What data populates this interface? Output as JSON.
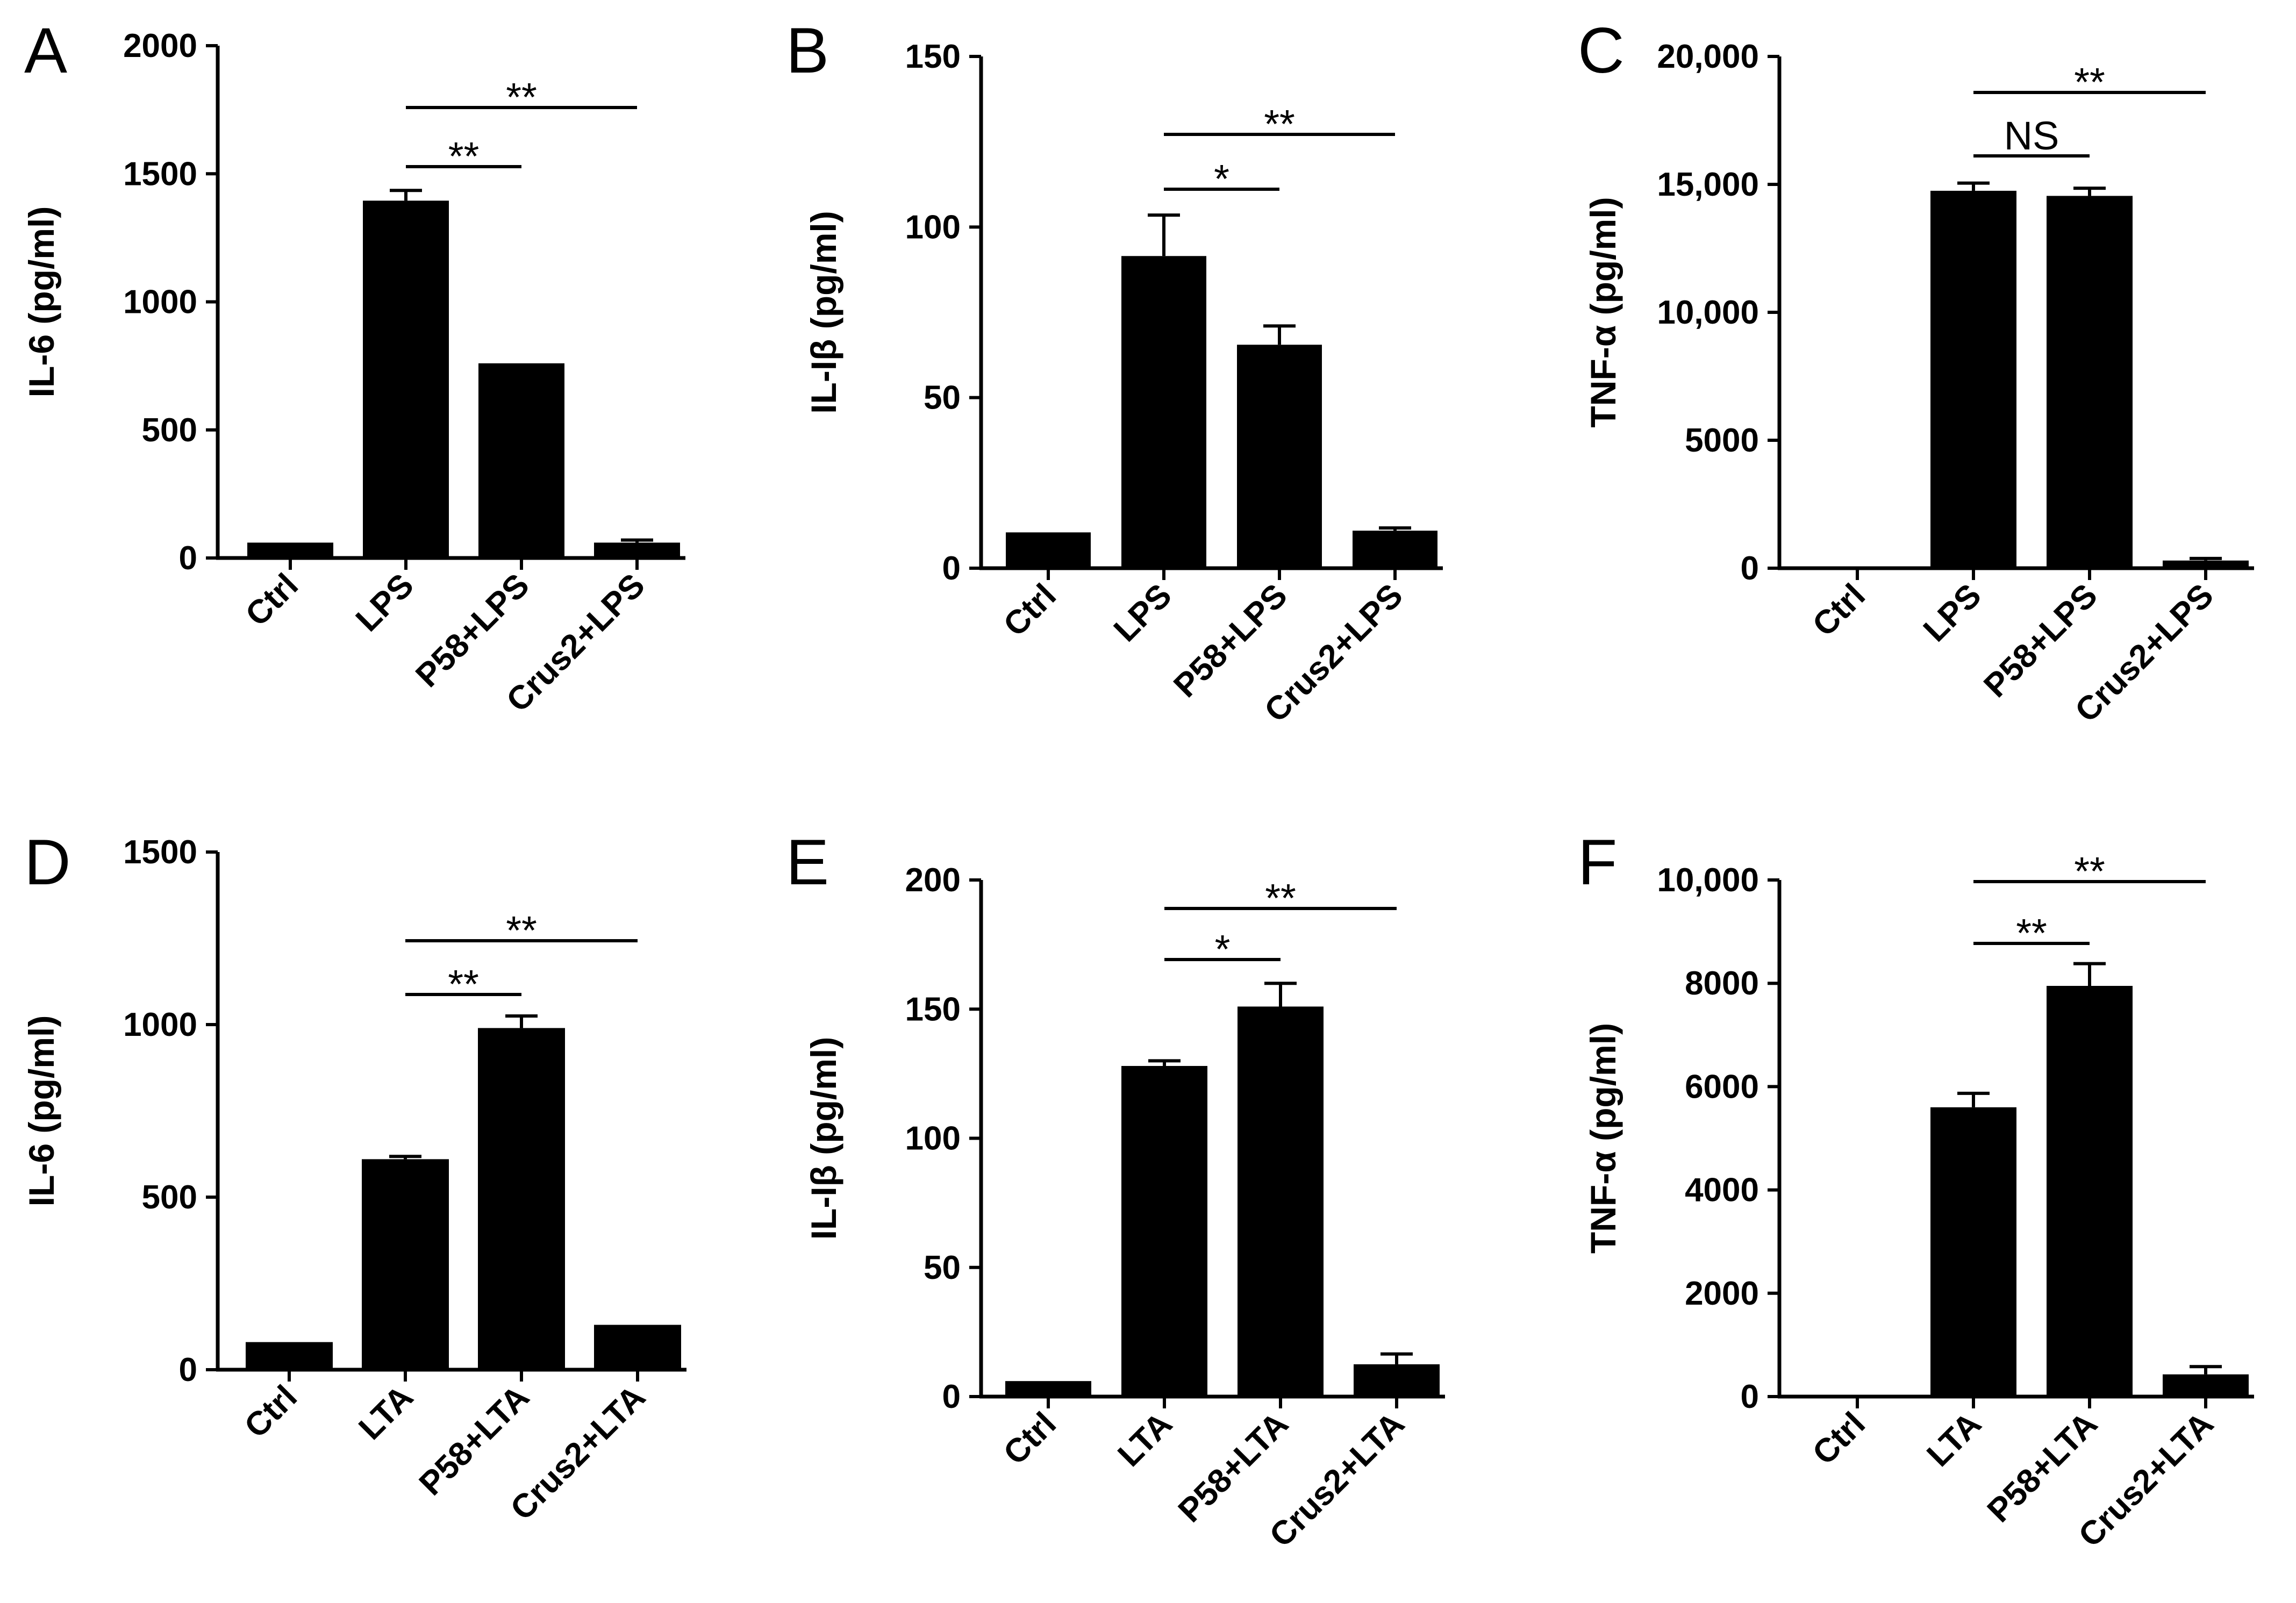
{
  "chart_data": [
    {
      "type": "bar",
      "panel": "A",
      "ylabel": "IL-6 (pg/ml)",
      "ylim": [
        0,
        2000
      ],
      "yticks": [
        0,
        500,
        1000,
        1500,
        2000
      ],
      "ytick_labels": [
        "0",
        "500",
        "1000",
        "1500",
        "2000"
      ],
      "categories": [
        "Ctrl",
        "LPS",
        "P58+LPS",
        "Crus2+LPS"
      ],
      "values": [
        60,
        1395,
        760,
        60
      ],
      "errors": [
        0,
        40,
        0,
        10
      ],
      "significance": [
        {
          "from": 1,
          "to": 2,
          "label": "**"
        },
        {
          "from": 1,
          "to": 3,
          "label": "**"
        }
      ]
    },
    {
      "type": "bar",
      "panel": "B",
      "ylabel": "IL-Iβ (pg/ml)",
      "ylim": [
        0,
        150
      ],
      "yticks": [
        0,
        50,
        100,
        150
      ],
      "ytick_labels": [
        "0",
        "50",
        "100",
        "150"
      ],
      "categories": [
        "Ctrl",
        "LPS",
        "P58+LPS",
        "Crus2+LPS"
      ],
      "values": [
        10.5,
        91.5,
        65.5,
        11
      ],
      "errors": [
        0,
        12,
        5.5,
        0.8
      ],
      "significance": [
        {
          "from": 1,
          "to": 2,
          "label": "*"
        },
        {
          "from": 1,
          "to": 3,
          "label": "**"
        }
      ]
    },
    {
      "type": "bar",
      "panel": "C",
      "ylabel": "TNF-α (pg/ml)",
      "ylim": [
        0,
        20000
      ],
      "yticks": [
        0,
        5000,
        10000,
        15000,
        20000
      ],
      "ytick_labels": [
        "0",
        "5000",
        "10,000",
        "15,000",
        "20,000"
      ],
      "categories": [
        "Ctrl",
        "LPS",
        "P58+LPS",
        "Crus2+LPS"
      ],
      "values": [
        50,
        14750,
        14550,
        300
      ],
      "errors": [
        0,
        300,
        300,
        80
      ],
      "significance": [
        {
          "from": 1,
          "to": 2,
          "label": "NS"
        },
        {
          "from": 1,
          "to": 3,
          "label": "**"
        }
      ]
    },
    {
      "type": "bar",
      "panel": "D",
      "ylabel": "IL-6 (pg/ml)",
      "ylim": [
        0,
        1500
      ],
      "yticks": [
        0,
        500,
        1000,
        1500
      ],
      "ytick_labels": [
        "0",
        "500",
        "1000",
        "1500"
      ],
      "categories": [
        "Ctrl",
        "LTA",
        "P58+LTA",
        "Crus2+LTA"
      ],
      "values": [
        80,
        610,
        990,
        130
      ],
      "errors": [
        0,
        8,
        35,
        0
      ],
      "significance": [
        {
          "from": 1,
          "to": 2,
          "label": "**"
        },
        {
          "from": 1,
          "to": 3,
          "label": "**"
        }
      ]
    },
    {
      "type": "bar",
      "panel": "E",
      "ylabel": "IL-Iβ (pg/ml)",
      "ylim": [
        0,
        200
      ],
      "yticks": [
        0,
        50,
        100,
        150,
        200
      ],
      "ytick_labels": [
        "0",
        "50",
        "100",
        "150",
        "200"
      ],
      "categories": [
        "Ctrl",
        "LTA",
        "P58+LTA",
        "Crus2+LTA"
      ],
      "values": [
        6,
        128,
        151,
        12.5
      ],
      "errors": [
        0,
        2,
        9,
        4
      ],
      "significance": [
        {
          "from": 1,
          "to": 2,
          "label": "*"
        },
        {
          "from": 1,
          "to": 3,
          "label": "**"
        }
      ]
    },
    {
      "type": "bar",
      "panel": "F",
      "ylabel": "TNF-α (pg/ml)",
      "ylim": [
        0,
        10000
      ],
      "yticks": [
        0,
        2000,
        4000,
        6000,
        8000,
        10000
      ],
      "ytick_labels": [
        "0",
        "2000",
        "4000",
        "6000",
        "8000",
        "10,000"
      ],
      "categories": [
        "Ctrl",
        "LTA",
        "P58+LTA",
        "Crus2+LTA"
      ],
      "values": [
        30,
        5600,
        7950,
        430
      ],
      "errors": [
        0,
        270,
        430,
        150
      ],
      "significance": [
        {
          "from": 1,
          "to": 2,
          "label": "**"
        },
        {
          "from": 1,
          "to": 3,
          "label": "**"
        }
      ]
    }
  ]
}
